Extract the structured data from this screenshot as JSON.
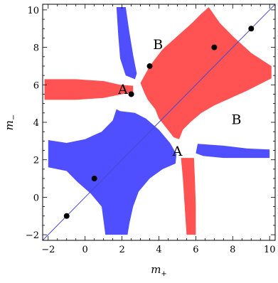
{
  "chart_data": {
    "type": "scatter",
    "xlabel": "m",
    "xlabel_sub": "+",
    "ylabel": "m",
    "ylabel_sub": "−",
    "xlim": [
      -2.3,
      10.3
    ],
    "ylim": [
      -2.3,
      10.3
    ],
    "x_ticks": [
      -2,
      0,
      2,
      4,
      6,
      8,
      10
    ],
    "y_ticks": [
      -2,
      0,
      2,
      4,
      6,
      8,
      10
    ],
    "grid": false,
    "colors": {
      "red": "#ff5252",
      "blue": "#4f4fff",
      "diagonal": "#4848cc"
    },
    "diagonal_line": {
      "x": [
        -2.3,
        10.3
      ],
      "y": [
        -2.3,
        10.3
      ]
    },
    "points": [
      {
        "x": -1.0,
        "y": -1.0
      },
      {
        "x": 0.5,
        "y": 1.0
      },
      {
        "x": 2.5,
        "y": 5.5
      },
      {
        "x": 3.5,
        "y": 7.0
      },
      {
        "x": 7.0,
        "y": 8.0
      },
      {
        "x": 9.0,
        "y": 9.0
      }
    ],
    "regions": [
      {
        "name": "red-main-region",
        "color": "red",
        "polygon": [
          [
            3.0,
            6.1
          ],
          [
            3.5,
            7.0
          ],
          [
            4.2,
            7.9
          ],
          [
            5.0,
            8.6
          ],
          [
            5.8,
            9.3
          ],
          [
            6.3,
            9.8
          ],
          [
            6.7,
            10.15
          ],
          [
            7.3,
            9.3
          ],
          [
            8.0,
            8.6
          ],
          [
            9.0,
            7.7
          ],
          [
            10.1,
            7.0
          ],
          [
            10.1,
            6.35
          ],
          [
            8.8,
            5.7
          ],
          [
            7.9,
            5.3
          ],
          [
            7.0,
            4.9
          ],
          [
            6.3,
            4.5
          ],
          [
            5.7,
            4.0
          ],
          [
            5.3,
            3.6
          ],
          [
            5.1,
            3.1
          ],
          [
            4.8,
            3.2
          ],
          [
            4.4,
            3.7
          ],
          [
            4.0,
            4.2
          ],
          [
            3.8,
            4.7
          ],
          [
            3.4,
            5.2
          ],
          [
            3.2,
            5.6
          ]
        ]
      },
      {
        "name": "red-left-arm",
        "color": "red",
        "polygon": [
          [
            -2.2,
            6.3
          ],
          [
            -0.5,
            6.3
          ],
          [
            1.0,
            6.2
          ],
          [
            1.9,
            6.0
          ],
          [
            2.6,
            5.95
          ],
          [
            2.6,
            5.6
          ],
          [
            2.0,
            5.5
          ],
          [
            1.0,
            5.3
          ],
          [
            -0.5,
            5.2
          ],
          [
            -2.2,
            5.2
          ]
        ]
      },
      {
        "name": "red-bottom-arm",
        "color": "red",
        "polygon": [
          [
            5.2,
            2.1
          ],
          [
            5.9,
            2.1
          ],
          [
            5.95,
            1.0
          ],
          [
            6.0,
            -0.5
          ],
          [
            6.0,
            -2.0
          ],
          [
            5.5,
            -2.0
          ],
          [
            5.4,
            -0.5
          ],
          [
            5.3,
            1.0
          ]
        ]
      },
      {
        "name": "blue-main-region",
        "color": "blue",
        "polygon": [
          [
            -2.0,
            3.05
          ],
          [
            -1.0,
            2.9
          ],
          [
            0.0,
            3.1
          ],
          [
            0.9,
            3.5
          ],
          [
            1.5,
            4.1
          ],
          [
            1.7,
            4.7
          ],
          [
            1.9,
            4.6
          ],
          [
            2.7,
            4.5
          ],
          [
            3.3,
            4.2
          ],
          [
            4.0,
            3.6
          ],
          [
            4.6,
            2.9
          ],
          [
            4.95,
            2.3
          ],
          [
            4.9,
            1.8
          ],
          [
            4.2,
            1.5
          ],
          [
            3.5,
            1.0
          ],
          [
            2.9,
            0.3
          ],
          [
            2.6,
            -0.5
          ],
          [
            2.4,
            -1.4
          ],
          [
            2.3,
            -2.0
          ],
          [
            1.1,
            -2.0
          ],
          [
            0.9,
            -0.5
          ],
          [
            0.3,
            0.2
          ],
          [
            -0.4,
            0.8
          ],
          [
            -1.0,
            1.4
          ],
          [
            -2.0,
            1.6
          ]
        ]
      },
      {
        "name": "blue-top-arm",
        "color": "blue",
        "polygon": [
          [
            1.7,
            10.15
          ],
          [
            2.2,
            10.15
          ],
          [
            2.4,
            8.8
          ],
          [
            2.6,
            7.6
          ],
          [
            2.8,
            6.6
          ],
          [
            2.7,
            6.3
          ],
          [
            2.2,
            6.5
          ],
          [
            1.9,
            7.4
          ],
          [
            1.8,
            8.6
          ]
        ]
      },
      {
        "name": "blue-right-arm",
        "color": "blue",
        "polygon": [
          [
            6.0,
            2.35
          ],
          [
            6.1,
            2.85
          ],
          [
            7.5,
            2.75
          ],
          [
            8.8,
            2.6
          ],
          [
            10.0,
            2.55
          ],
          [
            10.0,
            2.1
          ],
          [
            8.8,
            2.1
          ],
          [
            7.5,
            2.1
          ],
          [
            6.4,
            2.2
          ]
        ]
      }
    ],
    "annotations": [
      {
        "text": "B",
        "x": 3.95,
        "y": 8.1
      },
      {
        "text": "A",
        "x": 2.05,
        "y": 5.7
      },
      {
        "text": "B",
        "x": 8.2,
        "y": 4.1
      },
      {
        "text": "A",
        "x": 5.0,
        "y": 2.4
      }
    ]
  }
}
